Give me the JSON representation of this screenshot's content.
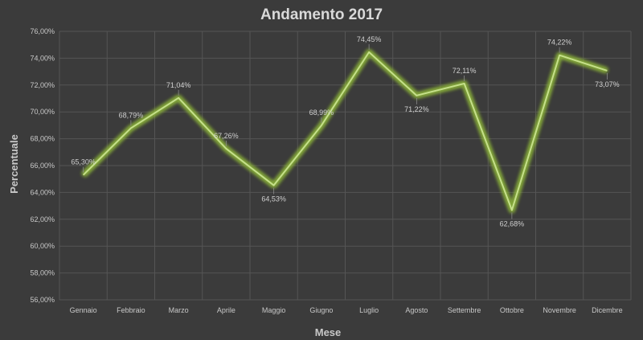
{
  "chart_data": {
    "type": "line",
    "title": "Andamento 2017",
    "xlabel": "Mese",
    "ylabel": "Percentuale",
    "categories": [
      "Gennaio",
      "Febbraio",
      "Marzo",
      "Aprile",
      "Maggio",
      "Giugno",
      "Luglio",
      "Agosto",
      "Settembre",
      "Ottobre",
      "Novembre",
      "Dicembre"
    ],
    "values": [
      65.3,
      68.79,
      71.04,
      67.26,
      64.53,
      68.99,
      74.45,
      71.22,
      72.11,
      62.68,
      74.22,
      73.07
    ],
    "data_labels": [
      "65,30%",
      "68,79%",
      "71,04%",
      "67,26%",
      "64,53%",
      "68,99%",
      "74,45%",
      "71,22%",
      "72,11%",
      "62,68%",
      "74,22%",
      "73,07%"
    ],
    "ylim": [
      56,
      76
    ],
    "yticks": [
      56,
      58,
      60,
      62,
      64,
      66,
      68,
      70,
      72,
      74,
      76
    ],
    "ytick_labels": [
      "56,00%",
      "58,00%",
      "60,00%",
      "62,00%",
      "64,00%",
      "66,00%",
      "68,00%",
      "70,00%",
      "72,00%",
      "74,00%",
      "76,00%"
    ],
    "grid": true,
    "line_color": "#c5e08a",
    "glow_color": "#8fb83a",
    "background": "#3b3b3b"
  }
}
